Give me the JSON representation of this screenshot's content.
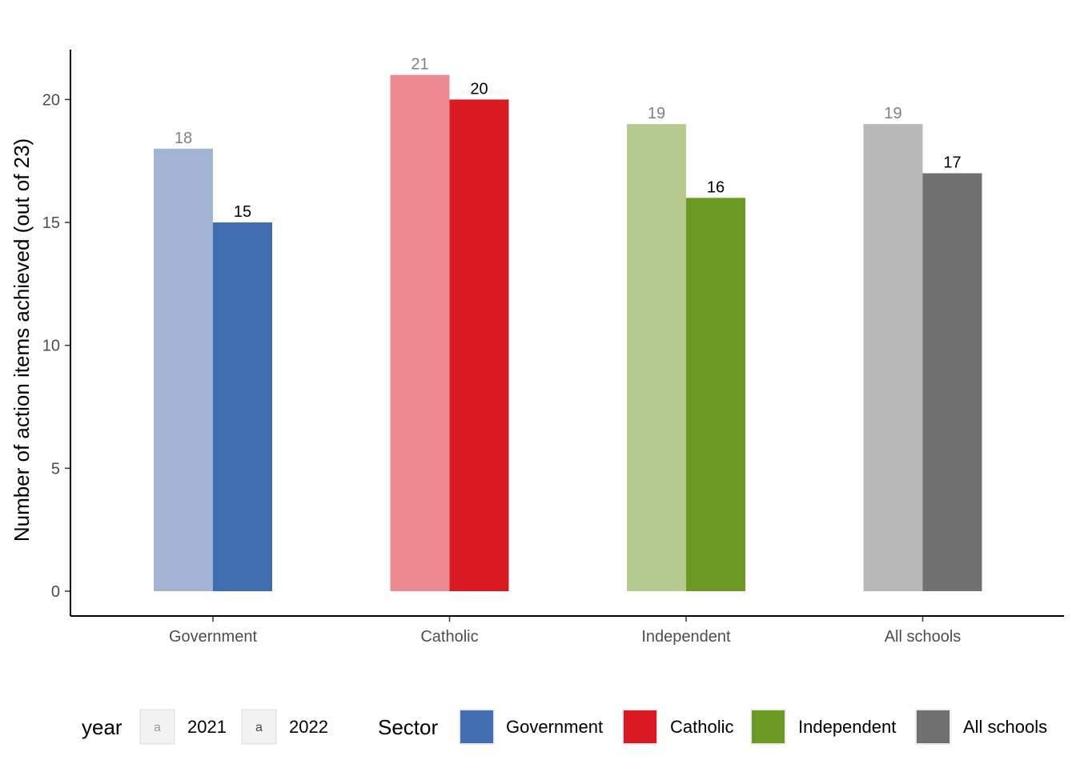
{
  "chart_data": {
    "type": "bar",
    "categories": [
      "Government",
      "Catholic",
      "Independent",
      "All schools"
    ],
    "series": [
      {
        "name": "2021",
        "values": [
          18,
          21,
          19,
          19
        ]
      },
      {
        "name": "2022",
        "values": [
          15,
          20,
          16,
          17
        ]
      }
    ],
    "title": "",
    "xlabel": "",
    "ylabel": "Number of action items achieved (out of 23)",
    "ylim": [
      -1,
      22
    ],
    "yticks": [
      0,
      5,
      10,
      15,
      20
    ],
    "grid": false,
    "legend_position": "bottom",
    "colors": {
      "2021": [
        "#a1b4d4",
        "#eb8b91",
        "#b7cb8f",
        "#b8b8b8"
      ],
      "2022": [
        "#3f6db0",
        "#da1a22",
        "#6a9a23",
        "#717171"
      ],
      "label_2021": "#808080",
      "label_2022": "#000000"
    }
  },
  "legend": {
    "year": {
      "title": "year",
      "items": [
        {
          "label": "2021",
          "key_text": "a",
          "color": "#9c9c9c"
        },
        {
          "label": "2022",
          "key_text": "a",
          "color": "#474747"
        }
      ]
    },
    "sector": {
      "title": "Sector",
      "items": [
        {
          "label": "Government",
          "color": "#3f6db0"
        },
        {
          "label": "Catholic",
          "color": "#da1a22"
        },
        {
          "label": "Independent",
          "color": "#6a9a23"
        },
        {
          "label": "All schools",
          "color": "#717171"
        }
      ]
    }
  }
}
